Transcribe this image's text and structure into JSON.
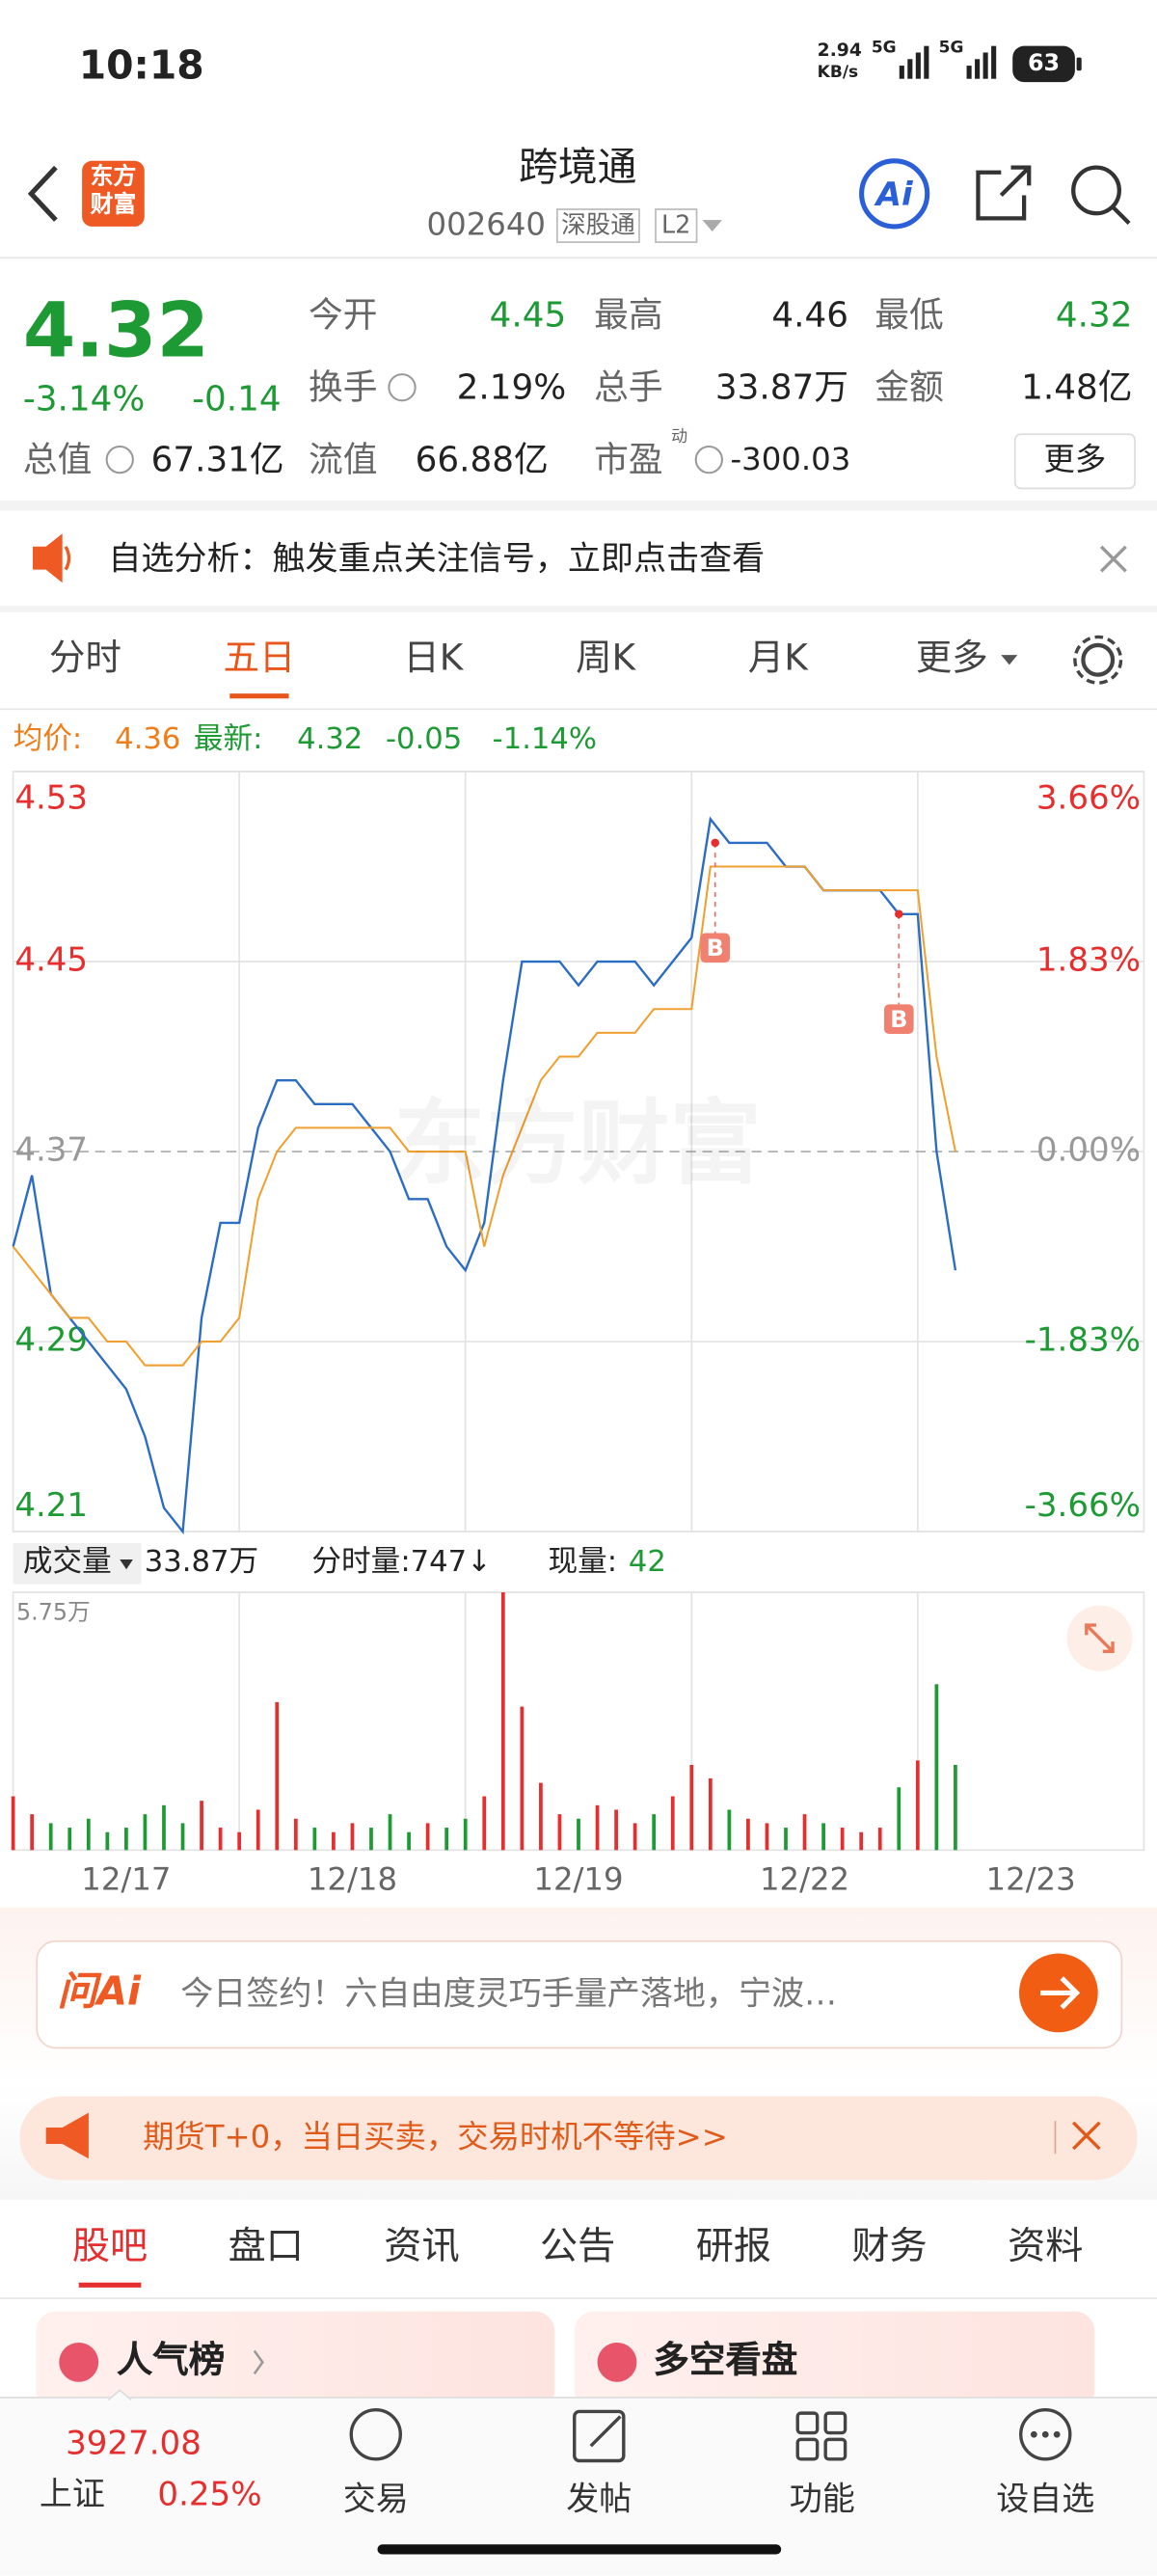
{
  "status_bar": {
    "time": "10:18",
    "net_speed": "2.94",
    "net_unit": "KB/s",
    "signal1": "5G",
    "signal2": "5G",
    "battery": "63"
  },
  "header": {
    "logo_top": "东方",
    "logo_bottom": "财富",
    "title": "跨境通",
    "code": "002640",
    "tag1": "深股通",
    "tag2": "L2",
    "ai": "Ai"
  },
  "quote": {
    "price": "4.32",
    "change_pct": "-3.14%",
    "change": "-0.14",
    "fields": [
      {
        "label": "今开",
        "value": "4.45"
      },
      {
        "label": "最高",
        "value": "4.46"
      },
      {
        "label": "最低",
        "value": "4.32"
      },
      {
        "label": "换手",
        "value": "2.19%"
      },
      {
        "label": "总手",
        "value": "33.87万"
      },
      {
        "label": "金额",
        "value": "1.48亿"
      },
      {
        "label": "总值",
        "value": "67.31亿"
      },
      {
        "label": "流值",
        "value": "66.88亿"
      },
      {
        "label": "市盈",
        "sup": "动",
        "value": "-300.03"
      }
    ],
    "more": "更多"
  },
  "notice": {
    "text": "自选分析：触发重点关注信号，立即点击查看"
  },
  "period_tabs": [
    "分时",
    "五日",
    "日K",
    "周K",
    "月K",
    "更多"
  ],
  "info_line": {
    "avg_label": "均价:",
    "avg": "4.36",
    "latest_label": "最新:",
    "latest": "4.32",
    "change": "-0.05",
    "change_pct": "-1.14%"
  },
  "watermark": "东方财富",
  "volume_info": {
    "label": "成交量",
    "total": "33.87万",
    "minute_volume": "分时量:747↓",
    "current_label": "现量:",
    "current": "42"
  },
  "chart_data": [
    {
      "type": "line",
      "x": [
        0,
        20,
        40,
        60,
        80,
        100,
        120,
        140,
        160,
        180,
        200,
        220,
        240,
        260,
        280,
        300,
        320,
        340,
        360,
        380,
        400,
        420,
        440,
        460,
        480,
        500,
        520,
        540,
        560,
        580,
        600,
        620,
        640,
        660,
        680,
        700,
        720,
        740,
        760,
        780,
        800,
        820,
        840,
        860,
        880,
        900,
        920,
        940,
        960,
        980,
        1000
      ],
      "series": [
        {
          "color": "#2b6cc4",
          "values": [
            4.33,
            4.36,
            4.31,
            4.3,
            4.29,
            4.28,
            4.27,
            4.25,
            4.22,
            4.21,
            4.3,
            4.34,
            4.34,
            4.38,
            4.4,
            4.4,
            4.39,
            4.39,
            4.39,
            4.38,
            4.37,
            4.35,
            4.35,
            4.33,
            4.32,
            4.34,
            4.4,
            4.45,
            4.45,
            4.45,
            4.44,
            4.45,
            4.45,
            4.45,
            4.44,
            4.45,
            4.46,
            4.51,
            4.5,
            4.5,
            4.5,
            4.49,
            4.49,
            4.48,
            4.48,
            4.48,
            4.48,
            4.47,
            4.47,
            4.37,
            4.32
          ]
        },
        {
          "color": "#f0a030",
          "values": [
            4.33,
            4.32,
            4.31,
            4.3,
            4.3,
            4.29,
            4.29,
            4.28,
            4.28,
            4.28,
            4.29,
            4.29,
            4.3,
            4.35,
            4.37,
            4.38,
            4.38,
            4.38,
            4.38,
            4.38,
            4.38,
            4.37,
            4.37,
            4.37,
            4.37,
            4.33,
            4.36,
            4.38,
            4.4,
            4.41,
            4.41,
            4.42,
            4.42,
            4.42,
            4.43,
            4.43,
            4.43,
            4.49,
            4.49,
            4.49,
            4.49,
            4.49,
            4.49,
            4.48,
            4.48,
            4.48,
            4.48,
            4.48,
            4.48,
            4.41,
            4.37
          ]
        }
      ],
      "xlim": [
        0,
        1200
      ],
      "xticks": [
        {
          "value": 120,
          "label": "12/17"
        },
        {
          "value": 360,
          "label": "12/18"
        },
        {
          "value": 600,
          "label": "12/19"
        },
        {
          "value": 840,
          "label": "12/22"
        },
        {
          "value": 1080,
          "label": "12/23"
        }
      ],
      "ylim": [
        4.21,
        4.53
      ],
      "yticks": [
        4.21,
        4.29,
        4.37,
        4.45,
        4.53
      ],
      "y2lim": [
        -3.66,
        3.66
      ],
      "y2ticks": [
        {
          "value": -3.66,
          "label": "-3.66%"
        },
        {
          "value": -1.83,
          "label": "-1.83%"
        },
        {
          "value": 0,
          "label": "0.00%"
        },
        {
          "value": 1.83,
          "label": "1.83%"
        },
        {
          "value": 3.66,
          "label": "3.66%"
        }
      ],
      "annotations": [
        {
          "x": 745,
          "y": 4.5,
          "label": "B"
        },
        {
          "x": 940,
          "y": 4.47,
          "label": "B"
        }
      ],
      "up_color": "#e62e2e",
      "down_color": "#1e9a35",
      "flat_color": "#888888"
    },
    {
      "type": "bar",
      "x": [
        0,
        20,
        40,
        60,
        80,
        100,
        120,
        140,
        160,
        180,
        200,
        220,
        240,
        260,
        280,
        300,
        320,
        340,
        360,
        380,
        400,
        420,
        440,
        460,
        480,
        500,
        520,
        540,
        560,
        580,
        600,
        620,
        640,
        660,
        680,
        700,
        720,
        740,
        760,
        780,
        800,
        820,
        840,
        860,
        880,
        900,
        920,
        940,
        960,
        980,
        1000
      ],
      "values": [
        1.2,
        0.8,
        0.6,
        0.5,
        0.7,
        0.4,
        0.5,
        0.8,
        1.0,
        0.6,
        1.1,
        0.5,
        0.4,
        0.9,
        3.3,
        0.7,
        0.5,
        0.4,
        0.6,
        0.5,
        0.8,
        0.4,
        0.6,
        0.5,
        0.7,
        1.2,
        5.75,
        3.2,
        1.5,
        0.8,
        0.7,
        1.0,
        0.9,
        0.6,
        0.8,
        1.2,
        1.9,
        1.6,
        0.9,
        0.7,
        0.6,
        0.5,
        0.8,
        0.6,
        0.5,
        0.4,
        0.5,
        1.4,
        2.0,
        3.7,
        1.9
      ],
      "ylim": [
        0,
        5.75
      ],
      "yticks": [
        {
          "value": 5.75,
          "label": "5.75万"
        }
      ],
      "up_color": "#e62e2e",
      "down_color": "#1e9a35"
    }
  ],
  "ai_bar": {
    "logo": "问Ai",
    "text": "今日签约！六自由度灵巧手量产落地，宁波…"
  },
  "ad": {
    "text": "期货T+0，当日买卖，交易时机不等待>>"
  },
  "info_tabs": [
    "股吧",
    "盘口",
    "资讯",
    "公告",
    "研报",
    "财务",
    "资料"
  ],
  "cards": [
    "人气榜",
    "多空看盘"
  ],
  "bottom_nav": {
    "index_value": "3927.08",
    "index_name": "上证",
    "index_change": "0.25%",
    "items": [
      "交易",
      "发帖",
      "功能",
      "设自选"
    ]
  }
}
